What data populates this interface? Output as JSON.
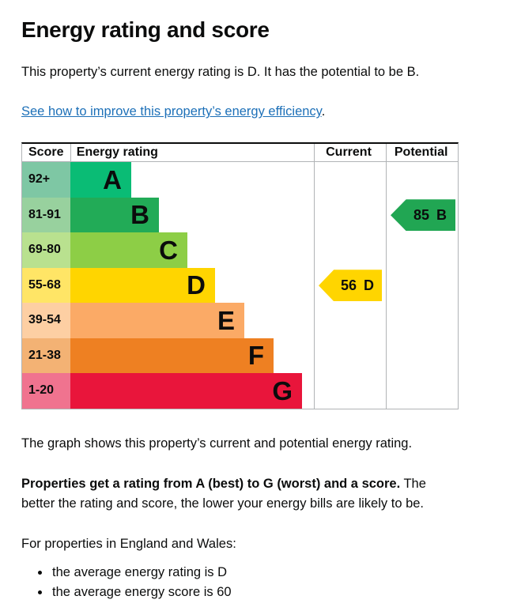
{
  "page": {
    "title": "Energy rating and score",
    "intro": "This property’s current energy rating is D. It has the potential to be B.",
    "improve_link": "See how to improve this property’s energy efficiency",
    "improve_link_suffix": ".",
    "caption": "The graph shows this property’s current and potential energy rating.",
    "explain_bold": "Properties get a rating from A (best) to G (worst) and a score.",
    "explain_rest": " The better the rating and score, the lower your energy bills are likely to be.",
    "regions_line": "For properties in England and Wales:",
    "bullets": [
      "the average energy rating is D",
      "the average energy score is 60"
    ]
  },
  "chart_data": {
    "type": "bar",
    "orientation": "horizontal",
    "title": "Energy rating and score",
    "columns": [
      "Score",
      "Energy rating",
      "Current",
      "Potential"
    ],
    "bands": [
      {
        "score_range": "92+",
        "letter": "A",
        "color": "#0abc75",
        "tint": "#7ec7a4"
      },
      {
        "score_range": "81-91",
        "letter": "B",
        "color": "#22ab57",
        "tint": "#98d19e"
      },
      {
        "score_range": "69-80",
        "letter": "C",
        "color": "#8dce46",
        "tint": "#b9e18f"
      },
      {
        "score_range": "55-68",
        "letter": "D",
        "color": "#ffd500",
        "tint": "#ffe566"
      },
      {
        "score_range": "39-54",
        "letter": "E",
        "color": "#fbaa66",
        "tint": "#fdcfa3"
      },
      {
        "score_range": "21-38",
        "letter": "F",
        "color": "#ee8022",
        "tint": "#f3b274"
      },
      {
        "score_range": "1-20",
        "letter": "G",
        "color": "#e9153b",
        "tint": "#f0738f"
      }
    ],
    "current": {
      "score": "56",
      "rating": "D",
      "color": "#ffd500",
      "band_range": "55-68"
    },
    "potential": {
      "score": "85",
      "rating": "B",
      "color": "#21a653",
      "band_range": "81-91"
    },
    "grid_color": "#b1b4b6",
    "text_color": "#0b0c0c",
    "link_color": "#1d70b8"
  }
}
